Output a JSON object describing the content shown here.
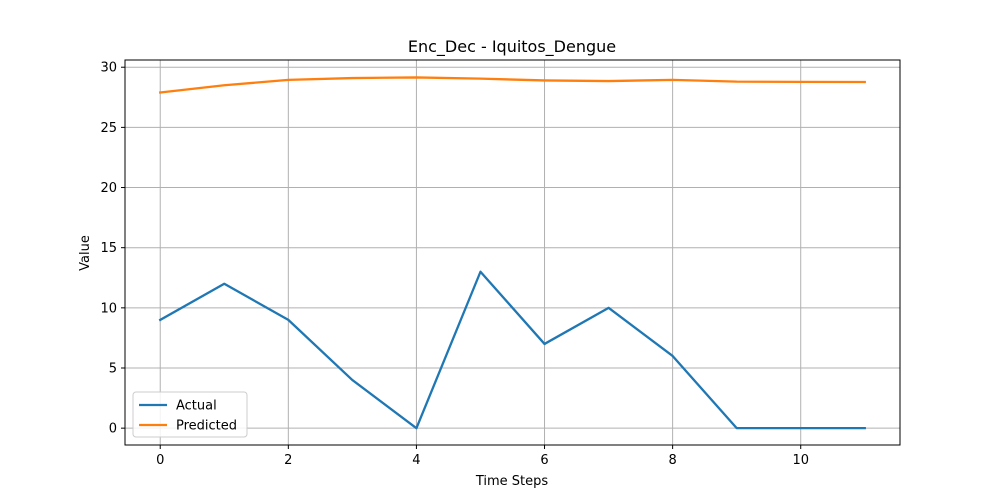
{
  "chart_data": {
    "type": "line",
    "title": "Enc_Dec - Iquitos_Dengue",
    "xlabel": "Time Steps",
    "ylabel": "Value",
    "x": [
      0,
      1,
      2,
      3,
      4,
      5,
      6,
      7,
      8,
      9,
      10,
      11
    ],
    "xlim": [
      -0.55,
      11.55
    ],
    "ylim": [
      -1.4,
      30.6
    ],
    "xticks": [
      0,
      2,
      4,
      6,
      8,
      10
    ],
    "yticks": [
      0,
      5,
      10,
      15,
      20,
      25,
      30
    ],
    "grid": true,
    "legend_position": "lower-left",
    "series": [
      {
        "name": "Actual",
        "color": "#1f77b4",
        "values": [
          9,
          12,
          9,
          4,
          0,
          13,
          7,
          10,
          6,
          0,
          0,
          0
        ]
      },
      {
        "name": "Predicted",
        "color": "#ff7f0e",
        "values": [
          27.9,
          28.5,
          28.95,
          29.1,
          29.15,
          29.05,
          28.9,
          28.85,
          28.95,
          28.8,
          28.78,
          28.77
        ]
      }
    ]
  }
}
